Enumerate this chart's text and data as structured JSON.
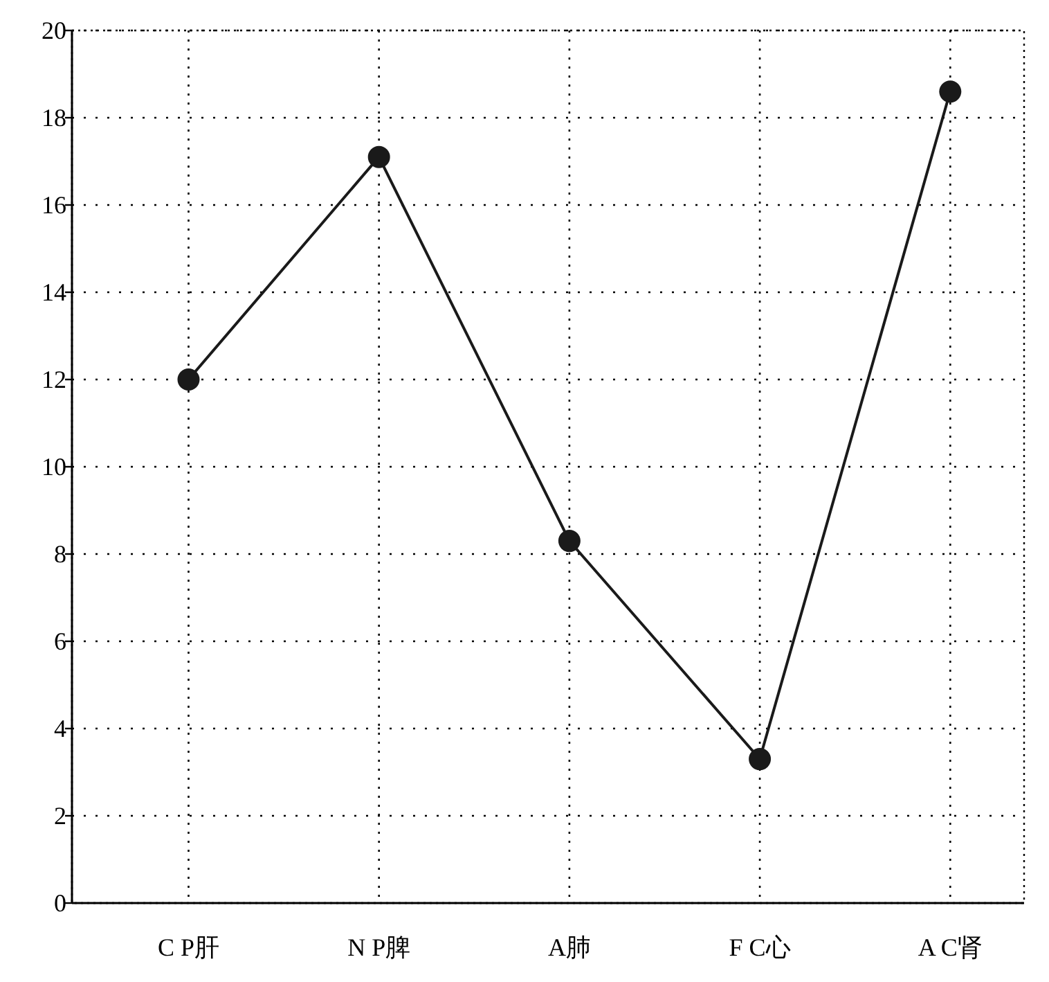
{
  "chart_data": {
    "type": "line",
    "categories": [
      "C P肝",
      "N P脾",
      "A肺",
      "F C心",
      "A C肾"
    ],
    "series": [
      {
        "color": "#1a1a1a",
        "values": [
          12,
          17.1,
          8.3,
          3.3,
          18.6
        ]
      }
    ],
    "ylim": [
      0,
      20
    ],
    "yticks": [
      0,
      2,
      4,
      6,
      8,
      10,
      12,
      14,
      16,
      18,
      20
    ],
    "grid": true,
    "marker": "circle",
    "line_style": "solid"
  }
}
